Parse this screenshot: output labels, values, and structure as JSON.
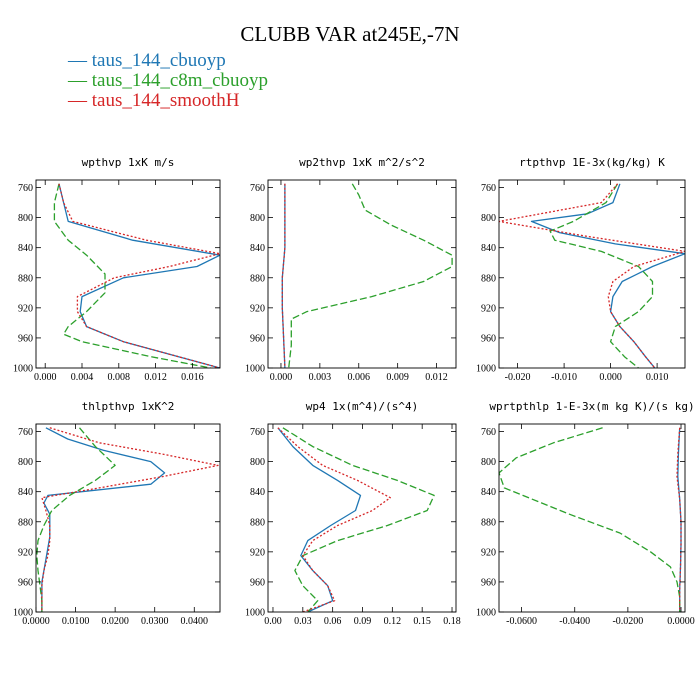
{
  "figure": {
    "title": "CLUBB VAR at245E,-7N",
    "legend": [
      {
        "name": "taus_144_cbuoyp",
        "color": "#1f77b4"
      },
      {
        "name": "taus_144_c8m_cbuoyp",
        "color": "#2ca02c"
      },
      {
        "name": "taus_144_smoothH",
        "color": "#d62728"
      }
    ]
  },
  "chart_data": [
    {
      "type": "line",
      "title": "wpthvp 1xK m/s",
      "xlim": [
        -0.001,
        0.019
      ],
      "xticks": [
        "0.000",
        "0.004",
        "0.008",
        "0.012",
        "0.016"
      ],
      "xtick_values": [
        0.0,
        0.004,
        0.008,
        0.012,
        0.016
      ],
      "ylim": [
        1000,
        750
      ],
      "yticks": [
        760,
        800,
        840,
        880,
        920,
        960,
        1000
      ],
      "series": [
        {
          "name": "taus_144_cbuoyp",
          "y": [
            755,
            780,
            805,
            830,
            850,
            865,
            880,
            905,
            925,
            945,
            965,
            985,
            1000
          ],
          "x": [
            0.0015,
            0.002,
            0.0025,
            0.0095,
            0.019,
            0.0165,
            0.0085,
            0.004,
            0.0038,
            0.0045,
            0.0085,
            0.0145,
            0.019
          ]
        },
        {
          "name": "taus_144_c8m_cbuoyp",
          "y": [
            755,
            780,
            805,
            830,
            850,
            875,
            900,
            925,
            945,
            955,
            965,
            985,
            1000
          ],
          "x": [
            0.0015,
            0.001,
            0.001,
            0.0025,
            0.0045,
            0.0065,
            0.0065,
            0.0045,
            0.0025,
            0.002,
            0.004,
            0.0115,
            0.018
          ]
        },
        {
          "name": "taus_144_smoothH",
          "y": [
            755,
            780,
            805,
            830,
            848,
            865,
            880,
            905,
            925,
            945,
            965,
            985,
            1000
          ],
          "x": [
            0.0015,
            0.002,
            0.003,
            0.011,
            0.019,
            0.0135,
            0.0075,
            0.0035,
            0.0035,
            0.0045,
            0.0085,
            0.0145,
            0.019
          ]
        }
      ]
    },
    {
      "type": "line",
      "title": "wp2thvp 1xK m^2/s^2",
      "xlim": [
        -0.001,
        0.0135
      ],
      "xticks": [
        "0.000",
        "0.003",
        "0.006",
        "0.009",
        "0.012"
      ],
      "xtick_values": [
        0.0,
        0.003,
        0.006,
        0.009,
        0.012
      ],
      "ylim": [
        1000,
        750
      ],
      "yticks": [
        760,
        800,
        840,
        880,
        920,
        960,
        1000
      ],
      "series": [
        {
          "name": "taus_144_cbuoyp",
          "y": [
            755,
            800,
            840,
            860,
            880,
            920,
            960,
            1000
          ],
          "x": [
            0.0003,
            0.0003,
            0.0003,
            0.0002,
            0.0001,
            0.0001,
            0.0002,
            0.0003
          ]
        },
        {
          "name": "taus_144_c8m_cbuoyp",
          "y": [
            755,
            770,
            790,
            810,
            830,
            850,
            865,
            885,
            905,
            925,
            935,
            950,
            970,
            1000
          ],
          "x": [
            0.0055,
            0.006,
            0.0065,
            0.0085,
            0.011,
            0.0132,
            0.0132,
            0.011,
            0.007,
            0.002,
            0.0008,
            0.0008,
            0.0008,
            0.0006
          ]
        },
        {
          "name": "taus_144_smoothH",
          "y": [
            755,
            800,
            840,
            860,
            880,
            920,
            960,
            1000
          ],
          "x": [
            0.0003,
            0.0003,
            0.0003,
            0.0002,
            0.0001,
            0.0001,
            0.0002,
            0.0003
          ]
        }
      ]
    },
    {
      "type": "line",
      "title": "rtpthvp 1E-3x(kg/kg) K",
      "xlim": [
        -0.024,
        0.016
      ],
      "xticks": [
        "-0.020",
        "-0.010",
        "0.000",
        "0.010"
      ],
      "xtick_values": [
        -0.02,
        -0.01,
        0.0,
        0.01
      ],
      "ylim": [
        1000,
        750
      ],
      "yticks": [
        760,
        800,
        840,
        880,
        920,
        960,
        1000
      ],
      "series": [
        {
          "name": "taus_144_cbuoyp",
          "y": [
            755,
            780,
            795,
            805,
            820,
            835,
            848,
            865,
            885,
            905,
            925,
            945,
            965,
            985,
            1000
          ],
          "x": [
            0.002,
            0.0005,
            -0.005,
            -0.017,
            -0.011,
            0.001,
            0.016,
            0.009,
            0.0025,
            0.0005,
            0.0,
            0.002,
            0.005,
            0.0075,
            0.0095
          ]
        },
        {
          "name": "taus_144_c8m_cbuoyp",
          "y": [
            755,
            780,
            805,
            818,
            830,
            845,
            865,
            885,
            905,
            925,
            945,
            965,
            985,
            1000
          ],
          "x": [
            0.0015,
            -0.001,
            -0.008,
            -0.013,
            -0.012,
            -0.002,
            0.006,
            0.009,
            0.009,
            0.006,
            0.001,
            0.0,
            0.003,
            0.006
          ]
        },
        {
          "name": "taus_144_smoothH",
          "y": [
            755,
            780,
            805,
            825,
            845,
            865,
            885,
            905,
            925,
            945,
            965,
            985,
            1000
          ],
          "x": [
            0.0015,
            -0.002,
            -0.024,
            -0.005,
            0.016,
            0.005,
            0.0005,
            -0.0005,
            0.0,
            0.002,
            0.005,
            0.0075,
            0.0095
          ]
        }
      ]
    },
    {
      "type": "line",
      "title": "thlpthvp 1xK^2",
      "xlim": [
        0.0,
        0.0465
      ],
      "xticks": [
        "0.0000",
        "0.0100",
        "0.0200",
        "0.0300",
        "0.0400"
      ],
      "xtick_values": [
        0.0,
        0.01,
        0.02,
        0.03,
        0.04
      ],
      "ylim": [
        1000,
        750
      ],
      "yticks": [
        760,
        800,
        840,
        880,
        920,
        960,
        1000
      ],
      "series": [
        {
          "name": "taus_144_cbuoyp",
          "y": [
            755,
            770,
            785,
            800,
            815,
            830,
            845,
            855,
            870,
            900,
            930,
            960,
            1000
          ],
          "x": [
            0.0025,
            0.008,
            0.017,
            0.029,
            0.0325,
            0.029,
            0.003,
            0.002,
            0.0035,
            0.0035,
            0.0025,
            0.0015,
            0.0015
          ]
        },
        {
          "name": "taus_144_c8m_cbuoyp",
          "y": [
            755,
            780,
            805,
            825,
            845,
            865,
            885,
            905,
            925,
            945,
            965,
            985,
            1000
          ],
          "x": [
            0.011,
            0.015,
            0.02,
            0.015,
            0.0085,
            0.004,
            0.002,
            0.0005,
            0.0002,
            0.0005,
            0.001,
            0.0015,
            0.0015
          ]
        },
        {
          "name": "taus_144_smoothH",
          "y": [
            755,
            775,
            790,
            805,
            820,
            835,
            848,
            865,
            885,
            905,
            925,
            945,
            965,
            985,
            1000
          ],
          "x": [
            0.0035,
            0.016,
            0.032,
            0.046,
            0.032,
            0.016,
            0.0015,
            0.0025,
            0.0035,
            0.0035,
            0.003,
            0.002,
            0.0015,
            0.0015,
            0.0015
          ]
        }
      ]
    },
    {
      "type": "line",
      "title": "wp4 1x(m^4)/(s^4)",
      "xlim": [
        -0.005,
        0.184
      ],
      "xticks": [
        "0.00",
        "0.03",
        "0.06",
        "0.09",
        "0.12",
        "0.15",
        "0.18"
      ],
      "xtick_values": [
        0.0,
        0.03,
        0.06,
        0.09,
        0.12,
        0.15,
        0.18
      ],
      "ylim": [
        1000,
        750
      ],
      "yticks": [
        760,
        800,
        840,
        880,
        920,
        960,
        1000
      ],
      "series": [
        {
          "name": "taus_144_cbuoyp",
          "y": [
            755,
            780,
            805,
            825,
            845,
            865,
            885,
            905,
            925,
            945,
            965,
            985,
            1000
          ],
          "x": [
            0.005,
            0.02,
            0.04,
            0.065,
            0.088,
            0.083,
            0.058,
            0.035,
            0.028,
            0.04,
            0.055,
            0.06,
            0.035
          ]
        },
        {
          "name": "taus_144_c8m_cbuoyp",
          "y": [
            755,
            780,
            805,
            825,
            845,
            865,
            885,
            905,
            925,
            945,
            965,
            985,
            1000
          ],
          "x": [
            0.01,
            0.04,
            0.08,
            0.125,
            0.162,
            0.155,
            0.115,
            0.065,
            0.03,
            0.022,
            0.03,
            0.045,
            0.035
          ]
        },
        {
          "name": "taus_144_smoothH",
          "y": [
            755,
            780,
            805,
            825,
            848,
            865,
            885,
            905,
            925,
            945,
            965,
            985,
            1000
          ],
          "x": [
            0.005,
            0.025,
            0.05,
            0.085,
            0.118,
            0.1,
            0.065,
            0.04,
            0.03,
            0.04,
            0.055,
            0.062,
            0.03
          ]
        }
      ]
    },
    {
      "type": "line",
      "title": "wprtpthlp 1-E-3x(m kg K)/(s kg)",
      "xlim": [
        -0.0685,
        0.0015
      ],
      "xticks": [
        "-0.0600",
        "-0.0400",
        "-0.0200",
        "0.0000"
      ],
      "xtick_values": [
        -0.06,
        -0.04,
        -0.02,
        0.0
      ],
      "ylim": [
        1000,
        750
      ],
      "yticks": [
        760,
        800,
        840,
        880,
        920,
        960,
        1000
      ],
      "series": [
        {
          "name": "taus_144_cbuoyp",
          "y": [
            755,
            790,
            820,
            850,
            880,
            910,
            940,
            970,
            1000
          ],
          "x": [
            -0.0005,
            -0.001,
            -0.0012,
            -0.0005,
            0.0,
            0.0,
            -0.0002,
            -0.0005,
            -0.0005
          ]
        },
        {
          "name": "taus_144_c8m_cbuoyp",
          "y": [
            755,
            775,
            795,
            815,
            835,
            850,
            870,
            895,
            920,
            940,
            960,
            980,
            1000
          ],
          "x": [
            -0.0295,
            -0.048,
            -0.062,
            -0.0685,
            -0.0665,
            -0.056,
            -0.042,
            -0.023,
            -0.0115,
            -0.004,
            -0.0015,
            -0.0005,
            -0.0005
          ]
        },
        {
          "name": "taus_144_smoothH",
          "y": [
            755,
            790,
            820,
            850,
            880,
            910,
            940,
            970,
            1000
          ],
          "x": [
            -0.0005,
            -0.0012,
            -0.0015,
            -0.0005,
            0.0,
            0.0,
            -0.0002,
            -0.0005,
            -0.0005
          ]
        }
      ]
    }
  ]
}
